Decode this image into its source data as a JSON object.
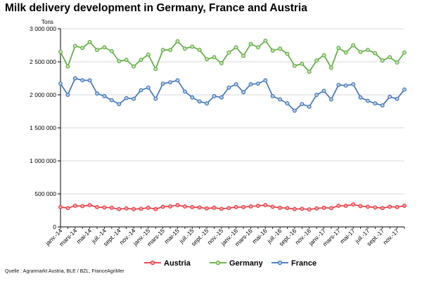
{
  "title": "Milk delivery development in Germany, France and Austria",
  "unit_label": "Tons",
  "source": "Quelle : Agrarmarkt Austria, BLE / BZL, FranceAgriMer",
  "chart_data": {
    "type": "line",
    "title": "Milk delivery development in Germany, France and Austria",
    "ylabel": "Tons",
    "ylim": [
      0,
      3000000
    ],
    "yticks": [
      "0",
      "500 000",
      "1 000 000",
      "1 500 000",
      "2 000 000",
      "2 500 000",
      "3 000 000"
    ],
    "ytick_values": [
      0,
      500000,
      1000000,
      1500000,
      2000000,
      2500000,
      3000000
    ],
    "grid": true,
    "legend_position": "bottom",
    "x": [
      "janv.-14",
      "févr.-14",
      "mars-14",
      "avr.-14",
      "mai-14",
      "juin-14",
      "juil.-14",
      "août-14",
      "sept.-14",
      "oct.-14",
      "nov.-14",
      "déc.-14",
      "janv.-15",
      "févr.-15",
      "mars-15",
      "avr.-15",
      "mai-15",
      "juin-15",
      "juil.-15",
      "août-15",
      "sept.-15",
      "oct.-15",
      "nov.-15",
      "déc.-15",
      "janv.-16",
      "févr.-16",
      "mars-16",
      "avr.-16",
      "mai-16",
      "juin-16",
      "juil.-16",
      "août-16",
      "sept.-16",
      "oct.-16",
      "nov.-16",
      "déc.-16",
      "janv.-17",
      "févr.-17",
      "mars-17",
      "avr.-17",
      "mai-17",
      "juin-17",
      "juil.-17",
      "août-17",
      "sept.-17",
      "oct.-17",
      "nov.-17",
      "déc.-17"
    ],
    "xticks": [
      "janv.-14",
      "mars-14",
      "mai-14",
      "juil.-14",
      "sept.-14",
      "nov.-14",
      "janv.-15",
      "mars-15",
      "mai-15",
      "juil.-15",
      "sept.-15",
      "nov.-15",
      "janv.-16",
      "mars-16",
      "mai-16",
      "juil.-16",
      "sept.-16",
      "nov.-16",
      "janv.-17",
      "mars-17",
      "mai-17",
      "juil.-17",
      "sept.-17",
      "nov.-17"
    ],
    "series": [
      {
        "name": "Austria",
        "color": "#e8303a",
        "marker_fill": "#f4a6a6",
        "values": [
          300000,
          285000,
          320000,
          315000,
          330000,
          300000,
          295000,
          290000,
          270000,
          280000,
          270000,
          275000,
          290000,
          270000,
          305000,
          310000,
          330000,
          310000,
          300000,
          295000,
          280000,
          290000,
          275000,
          285000,
          300000,
          300000,
          310000,
          320000,
          330000,
          305000,
          290000,
          285000,
          270000,
          275000,
          265000,
          280000,
          290000,
          285000,
          320000,
          320000,
          340000,
          315000,
          305000,
          295000,
          285000,
          305000,
          300000,
          320000
        ]
      },
      {
        "name": "Germany",
        "color": "#5aa83a",
        "marker_fill": "#c5e3b2",
        "values": [
          2650000,
          2430000,
          2740000,
          2710000,
          2800000,
          2680000,
          2720000,
          2660000,
          2510000,
          2530000,
          2430000,
          2530000,
          2610000,
          2390000,
          2680000,
          2680000,
          2810000,
          2700000,
          2730000,
          2680000,
          2540000,
          2570000,
          2480000,
          2640000,
          2720000,
          2590000,
          2770000,
          2720000,
          2820000,
          2670000,
          2700000,
          2620000,
          2440000,
          2470000,
          2350000,
          2520000,
          2600000,
          2410000,
          2710000,
          2640000,
          2750000,
          2650000,
          2680000,
          2630000,
          2520000,
          2570000,
          2490000,
          2640000
        ]
      },
      {
        "name": "France",
        "color": "#3a70b5",
        "marker_fill": "#b3cbe8",
        "values": [
          2170000,
          2000000,
          2250000,
          2220000,
          2220000,
          2020000,
          1980000,
          1920000,
          1860000,
          1950000,
          1940000,
          2070000,
          2110000,
          1940000,
          2170000,
          2190000,
          2220000,
          2050000,
          1960000,
          1900000,
          1870000,
          1980000,
          1960000,
          2110000,
          2160000,
          2040000,
          2160000,
          2170000,
          2220000,
          1980000,
          1930000,
          1870000,
          1760000,
          1860000,
          1820000,
          2000000,
          2060000,
          1930000,
          2150000,
          2140000,
          2160000,
          1960000,
          1910000,
          1870000,
          1840000,
          1970000,
          1940000,
          2080000
        ]
      }
    ]
  }
}
